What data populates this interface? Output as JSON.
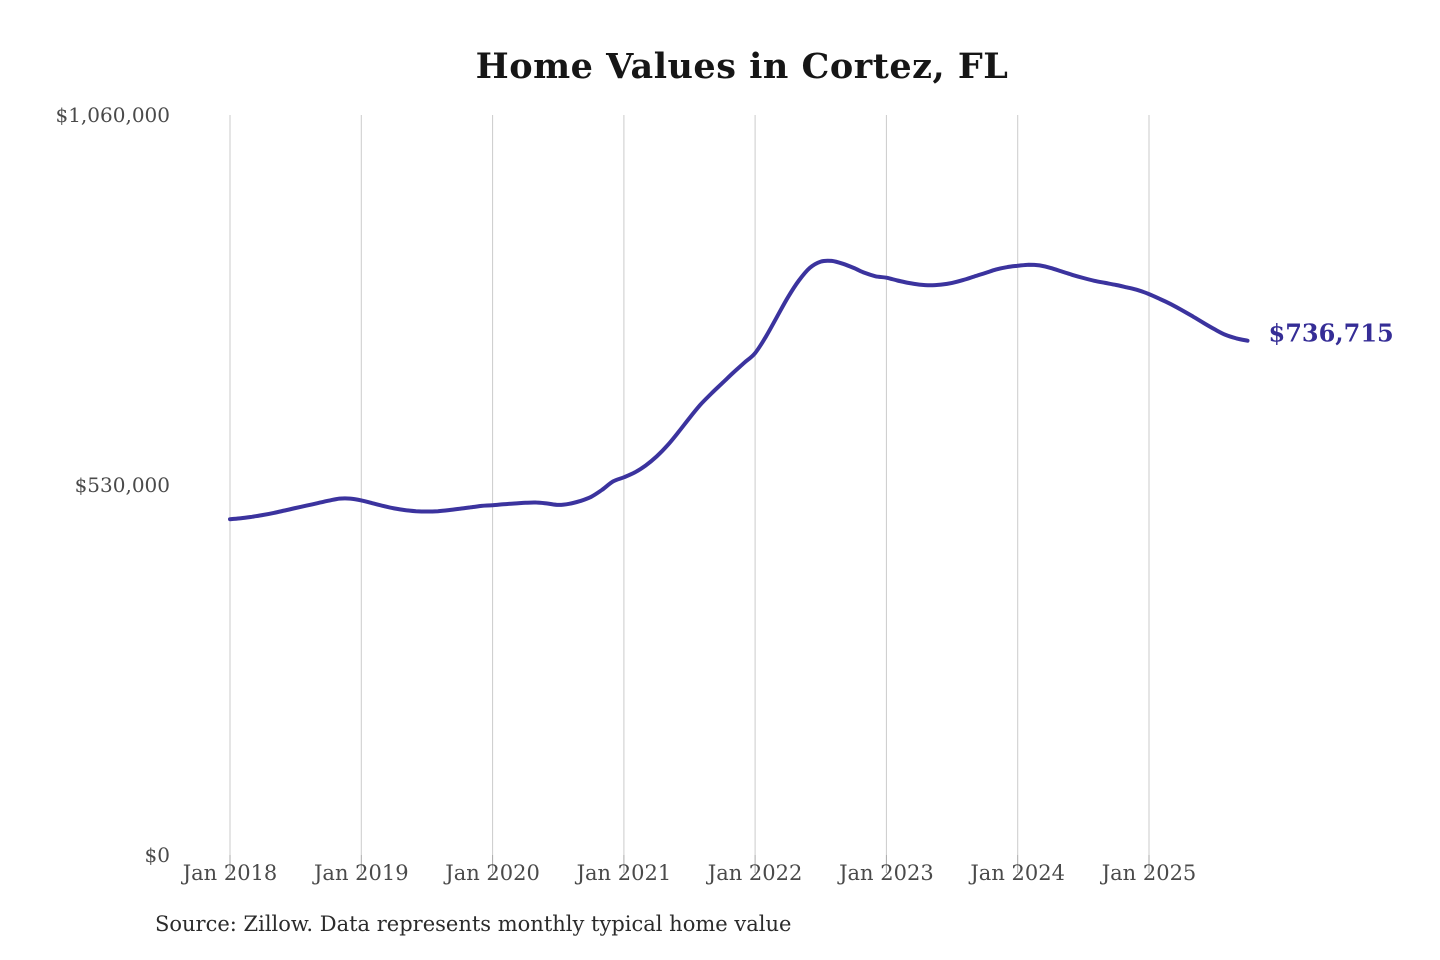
{
  "chart": {
    "title": "Home Values in Cortez, FL",
    "source": "Source: Zillow. Data represents monthly typical home value",
    "end_label": "$736,715",
    "colors": {
      "line": "#3b339e",
      "end_label": "#352d96",
      "gridline": "#cbcbcb",
      "tickmark": "#a8a8a8",
      "axis_label": "#4a4a4a",
      "title": "#161616",
      "background": "#ffffff"
    }
  },
  "chart_data": {
    "type": "line",
    "title": "Home Values in Cortez, FL",
    "frequency": "monthly",
    "x_start": "Jan 2018",
    "x_end": "Oct 2025",
    "x_tick_labels": [
      "Jan 2018",
      "Jan 2019",
      "Jan 2020",
      "Jan 2021",
      "Jan 2022",
      "Jan 2023",
      "Jan 2024",
      "Jan 2025"
    ],
    "x_tick_month_indices": [
      0,
      12,
      24,
      36,
      48,
      60,
      72,
      84
    ],
    "y_ticks": [
      {
        "value": 0,
        "label": "$0"
      },
      {
        "value": 530000,
        "label": "$530,000"
      },
      {
        "value": 1060000,
        "label": "$1,060,000"
      }
    ],
    "ylim": [
      0,
      1060000
    ],
    "grid": "vertical-only",
    "legend": "none",
    "annotation": {
      "text": "$736,715",
      "at": "last-point"
    },
    "series": [
      {
        "name": "Typical home value",
        "values": [
          481000,
          482500,
          484500,
          487000,
          490000,
          493500,
          497000,
          500500,
          504000,
          507500,
          510500,
          510500,
          508000,
          504000,
          500000,
          496500,
          494000,
          492500,
          492000,
          492500,
          494000,
          496000,
          498000,
          500000,
          501000,
          502500,
          503500,
          504500,
          505000,
          503500,
          501500,
          503000,
          507000,
          513000,
          523000,
          535000,
          541000,
          548000,
          558000,
          571000,
          587000,
          606000,
          626000,
          645000,
          661000,
          676000,
          691000,
          705000,
          719000,
          743000,
          771000,
          799000,
          823000,
          841000,
          850000,
          851000,
          847000,
          841000,
          834000,
          829000,
          827000,
          823000,
          819500,
          817000,
          816000,
          817000,
          819500,
          823500,
          828500,
          833500,
          838500,
          842000,
          844000,
          845500,
          844500,
          841000,
          836000,
          831000,
          826500,
          822500,
          819500,
          816500,
          813000,
          809000,
          803500,
          796500,
          789000,
          780500,
          771500,
          762000,
          753000,
          745000,
          740000,
          736715
        ]
      }
    ],
    "last_value": 736715,
    "last_value_label": "$736,715"
  }
}
